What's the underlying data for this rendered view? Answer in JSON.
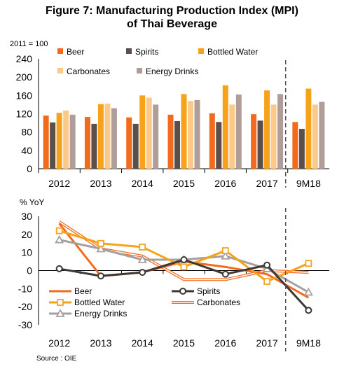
{
  "title_line1": "Figure 7: Manufacturing Production Index (MPI)",
  "title_line2": "of Thai Beverage",
  "source": "Source : OIE",
  "chart_data": [
    {
      "type": "bar",
      "unit_label": "2011 = 100",
      "categories": [
        "2012",
        "2013",
        "2014",
        "2015",
        "2016",
        "2017",
        "9M18"
      ],
      "ylim": [
        0,
        240
      ],
      "yticks": [
        0,
        40,
        80,
        120,
        160,
        200,
        240
      ],
      "grid": false,
      "legend_position": "top",
      "series": [
        {
          "name": "Beer",
          "color": "#f26b1d",
          "values": [
            116,
            113,
            112,
            118,
            121,
            119,
            102
          ]
        },
        {
          "name": "Spirits",
          "color": "#5b4f4c",
          "values": [
            101,
            98,
            98,
            104,
            102,
            105,
            87
          ]
        },
        {
          "name": "Bottled Water",
          "color": "#f7a21b",
          "values": [
            122,
            141,
            160,
            163,
            182,
            171,
            175
          ]
        },
        {
          "name": "Carbonates",
          "color": "#fbc98a",
          "values": [
            127,
            142,
            155,
            148,
            140,
            140,
            140
          ]
        },
        {
          "name": "Energy Drinks",
          "color": "#b09c99",
          "values": [
            118,
            132,
            140,
            150,
            162,
            163,
            146
          ]
        }
      ]
    },
    {
      "type": "line",
      "ylabel": "% YoY",
      "categories": [
        "2012",
        "2013",
        "2014",
        "2015",
        "2016",
        "2017",
        "9M18"
      ],
      "ylim": [
        -30,
        30
      ],
      "yticks": [
        -30,
        -20,
        -10,
        0,
        10,
        20,
        30
      ],
      "grid": false,
      "legend_position": "bottom-left",
      "series": [
        {
          "name": "Beer",
          "color": "#f26b1d",
          "marker": "none",
          "style": "solid",
          "values": [
            26,
            -3,
            -1,
            5,
            2,
            -2,
            -15
          ]
        },
        {
          "name": "Spirits",
          "color": "#3d3735",
          "marker": "circle",
          "style": "solid",
          "values": [
            1,
            -3,
            -1,
            6,
            -2,
            3,
            -22
          ]
        },
        {
          "name": "Bottled Water",
          "color": "#f7a21b",
          "marker": "square",
          "style": "solid",
          "values": [
            22,
            15,
            13,
            2,
            11,
            -6,
            4
          ]
        },
        {
          "name": "Carbonates",
          "color": "#f26b1d",
          "marker": "none",
          "style": "double",
          "values": [
            27,
            12,
            8,
            -5,
            -5,
            0,
            -1
          ]
        },
        {
          "name": "Energy Drinks",
          "color": "#a5a0a0",
          "marker": "triangle",
          "style": "solid",
          "values": [
            17,
            12,
            6,
            6,
            8,
            1,
            -12
          ]
        }
      ]
    }
  ]
}
